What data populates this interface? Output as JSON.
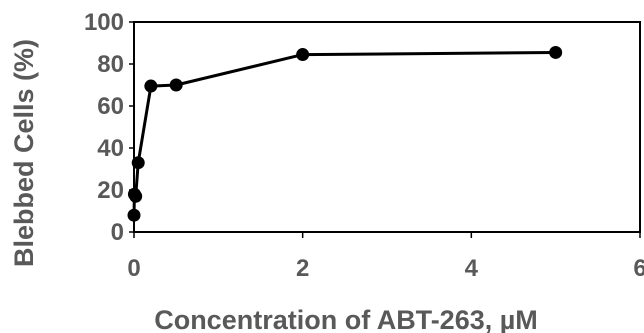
{
  "chart_data": {
    "type": "scatter",
    "title": "",
    "xlabel": "Concentration of ABT-263, µM",
    "ylabel": "Blebbed Cells (%)",
    "xlim": [
      0,
      6
    ],
    "ylim": [
      0,
      100
    ],
    "x_ticks": [
      "0",
      "2",
      "4",
      "6"
    ],
    "y_ticks": [
      "0",
      "20",
      "40",
      "60",
      "80",
      "100"
    ],
    "grid": false,
    "legend": "none",
    "line_color": "#000000",
    "marker_color": "#000000",
    "series": [
      {
        "x": [
          0,
          0.005,
          0.02,
          0.05,
          0.2,
          0.5,
          2,
          5
        ],
        "y": [
          8,
          18,
          17,
          33,
          69.5,
          70,
          84.5,
          85.5
        ]
      }
    ]
  }
}
